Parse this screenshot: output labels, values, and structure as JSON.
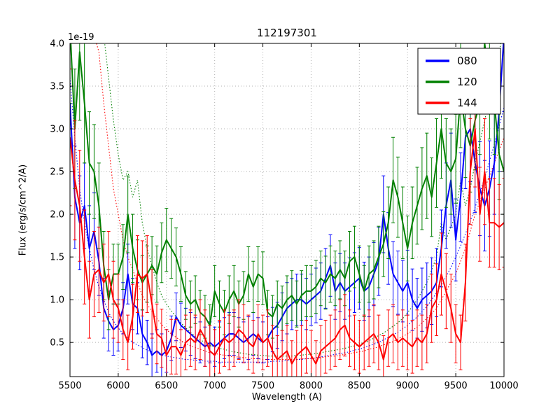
{
  "chart_data": {
    "type": "line",
    "title": "112197301",
    "xlabel": "Wavelength (A)",
    "ylabel": "Flux (erg/s/cm^2/A)",
    "y_offset_text": "1e-19",
    "xlim": [
      5500,
      10000
    ],
    "ylim": [
      0.1,
      4.0
    ],
    "xticks": [
      5500,
      6000,
      6500,
      7000,
      7500,
      8000,
      8500,
      9000,
      9500,
      10000
    ],
    "yticks": [
      0.5,
      1.0,
      1.5,
      2.0,
      2.5,
      3.0,
      3.5,
      4.0
    ],
    "grid": true,
    "legend_position": "upper right",
    "x_start": 5500,
    "x_step": 50,
    "n_points": 91,
    "series": [
      {
        "name": "080",
        "color": "#0000ff",
        "values": [
          3.3,
          2.2,
          1.9,
          2.1,
          1.6,
          1.8,
          1.45,
          0.9,
          0.75,
          0.65,
          0.7,
          0.9,
          1.3,
          0.95,
          0.9,
          0.6,
          0.5,
          0.35,
          0.4,
          0.35,
          0.4,
          0.55,
          0.8,
          0.7,
          0.65,
          0.6,
          0.55,
          0.5,
          0.45,
          0.5,
          0.45,
          0.5,
          0.55,
          0.6,
          0.6,
          0.55,
          0.5,
          0.55,
          0.6,
          0.55,
          0.5,
          0.55,
          0.65,
          0.7,
          0.8,
          0.9,
          0.95,
          1.0,
          1.0,
          0.95,
          1.0,
          1.05,
          1.1,
          1.25,
          1.4,
          1.1,
          1.2,
          1.1,
          1.15,
          1.2,
          1.25,
          1.1,
          1.15,
          1.3,
          1.45,
          2.0,
          1.6,
          1.3,
          1.2,
          1.1,
          1.2,
          1.0,
          0.9,
          1.0,
          1.05,
          1.1,
          1.2,
          1.6,
          2.1,
          2.4,
          1.7,
          2.2,
          2.9,
          3.0,
          2.6,
          2.3,
          2.1,
          2.3,
          2.6,
          3.2,
          4.1
        ],
        "errors": [
          0.8,
          0.6,
          0.55,
          0.5,
          0.5,
          0.45,
          0.4,
          0.35,
          0.35,
          0.3,
          0.3,
          0.3,
          0.35,
          0.3,
          0.3,
          0.28,
          0.26,
          0.25,
          0.25,
          0.25,
          0.25,
          0.26,
          0.28,
          0.26,
          0.25,
          0.25,
          0.24,
          0.24,
          0.23,
          0.24,
          0.23,
          0.24,
          0.24,
          0.25,
          0.25,
          0.24,
          0.24,
          0.25,
          0.25,
          0.24,
          0.24,
          0.25,
          0.26,
          0.27,
          0.28,
          0.3,
          0.3,
          0.3,
          0.3,
          0.3,
          0.3,
          0.32,
          0.33,
          0.35,
          0.36,
          0.33,
          0.34,
          0.33,
          0.34,
          0.35,
          0.36,
          0.34,
          0.35,
          0.37,
          0.4,
          0.45,
          0.42,
          0.38,
          0.37,
          0.36,
          0.38,
          0.36,
          0.35,
          0.37,
          0.38,
          0.39,
          0.4,
          0.45,
          0.5,
          0.55,
          0.48,
          0.52,
          0.6,
          0.62,
          0.58,
          0.55,
          0.53,
          0.56,
          0.6,
          0.7,
          0.9
        ]
      },
      {
        "name": "120",
        "color": "#008000",
        "values": [
          4.2,
          3.0,
          3.9,
          3.3,
          2.6,
          2.5,
          2.1,
          1.4,
          1.0,
          1.3,
          1.3,
          1.5,
          2.0,
          1.6,
          1.35,
          1.2,
          1.3,
          1.4,
          1.3,
          1.55,
          1.7,
          1.6,
          1.5,
          1.3,
          1.05,
          0.95,
          1.0,
          0.85,
          0.8,
          0.7,
          1.1,
          0.95,
          0.85,
          1.0,
          1.1,
          0.95,
          1.05,
          1.3,
          1.15,
          1.3,
          1.25,
          0.85,
          0.8,
          0.95,
          0.9,
          1.0,
          1.05,
          0.95,
          1.05,
          1.1,
          1.1,
          1.15,
          1.25,
          1.2,
          1.3,
          1.25,
          1.35,
          1.25,
          1.45,
          1.5,
          1.3,
          1.1,
          1.3,
          1.35,
          1.5,
          1.65,
          1.9,
          2.4,
          2.2,
          1.9,
          1.6,
          1.9,
          2.1,
          2.3,
          2.45,
          2.2,
          2.6,
          3.0,
          2.6,
          2.5,
          2.65,
          3.4,
          3.0,
          2.8,
          3.1,
          3.3,
          4.0,
          3.5,
          3.3,
          2.7,
          2.5
        ],
        "errors": [
          0.9,
          0.7,
          0.8,
          0.7,
          0.6,
          0.55,
          0.5,
          0.4,
          0.35,
          0.35,
          0.35,
          0.38,
          0.45,
          0.4,
          0.35,
          0.32,
          0.33,
          0.34,
          0.33,
          0.35,
          0.37,
          0.35,
          0.34,
          0.32,
          0.28,
          0.27,
          0.28,
          0.26,
          0.25,
          0.24,
          0.3,
          0.27,
          0.26,
          0.28,
          0.3,
          0.27,
          0.28,
          0.32,
          0.3,
          0.32,
          0.31,
          0.26,
          0.25,
          0.27,
          0.26,
          0.28,
          0.29,
          0.27,
          0.29,
          0.3,
          0.3,
          0.31,
          0.32,
          0.31,
          0.33,
          0.32,
          0.34,
          0.32,
          0.35,
          0.36,
          0.33,
          0.3,
          0.33,
          0.34,
          0.36,
          0.38,
          0.42,
          0.5,
          0.47,
          0.42,
          0.38,
          0.42,
          0.45,
          0.48,
          0.5,
          0.46,
          0.52,
          0.58,
          0.52,
          0.5,
          0.52,
          0.62,
          0.57,
          0.54,
          0.58,
          0.6,
          0.68,
          0.62,
          0.6,
          0.53,
          0.5
        ]
      },
      {
        "name": "144",
        "color": "#ff0000",
        "values": [
          2.9,
          2.4,
          2.1,
          1.5,
          1.0,
          1.3,
          1.35,
          1.2,
          1.3,
          1.0,
          0.9,
          0.65,
          0.5,
          0.8,
          1.3,
          1.25,
          1.3,
          0.95,
          0.6,
          0.55,
          0.35,
          0.45,
          0.45,
          0.35,
          0.5,
          0.55,
          0.5,
          0.65,
          0.55,
          0.4,
          0.35,
          0.45,
          0.55,
          0.5,
          0.55,
          0.65,
          0.6,
          0.5,
          0.45,
          0.6,
          0.5,
          0.55,
          0.4,
          0.3,
          0.35,
          0.4,
          0.25,
          0.35,
          0.4,
          0.45,
          0.35,
          0.25,
          0.4,
          0.45,
          0.5,
          0.55,
          0.65,
          0.7,
          0.55,
          0.5,
          0.45,
          0.5,
          0.55,
          0.6,
          0.5,
          0.3,
          0.55,
          0.6,
          0.5,
          0.55,
          0.5,
          0.45,
          0.55,
          0.5,
          0.6,
          0.9,
          1.0,
          1.3,
          1.1,
          0.9,
          0.6,
          0.5,
          1.2,
          2.5,
          3.0,
          2.0,
          2.5,
          1.9,
          1.9,
          1.85,
          1.9
        ],
        "errors": [
          0.8,
          0.7,
          0.65,
          0.55,
          0.45,
          0.5,
          0.5,
          0.45,
          0.5,
          0.45,
          0.4,
          0.35,
          0.32,
          0.38,
          0.45,
          0.44,
          0.45,
          0.4,
          0.35,
          0.34,
          0.3,
          0.32,
          0.32,
          0.3,
          0.32,
          0.33,
          0.32,
          0.35,
          0.33,
          0.3,
          0.3,
          0.31,
          0.33,
          0.32,
          0.33,
          0.35,
          0.34,
          0.32,
          0.31,
          0.34,
          0.32,
          0.33,
          0.3,
          0.28,
          0.29,
          0.3,
          0.27,
          0.29,
          0.3,
          0.31,
          0.29,
          0.27,
          0.3,
          0.31,
          0.32,
          0.33,
          0.35,
          0.36,
          0.33,
          0.32,
          0.31,
          0.32,
          0.33,
          0.34,
          0.32,
          0.28,
          0.33,
          0.34,
          0.32,
          0.33,
          0.32,
          0.31,
          0.33,
          0.32,
          0.34,
          0.4,
          0.42,
          0.48,
          0.44,
          0.4,
          0.34,
          0.32,
          0.45,
          0.62,
          0.68,
          0.55,
          0.62,
          0.52,
          0.52,
          0.5,
          0.52
        ]
      }
    ],
    "noise_series": [
      {
        "name": "080-noise",
        "color": "#0000ff",
        "style": "dotted",
        "values": [
          3.6,
          2.9,
          2.3,
          1.9,
          1.6,
          1.35,
          1.15,
          1.0,
          0.85,
          0.75,
          0.67,
          0.6,
          0.55,
          0.5,
          0.47,
          0.44,
          0.41,
          0.39,
          0.37,
          0.35,
          0.34,
          0.33,
          0.32,
          0.31,
          0.3,
          0.3,
          0.29,
          0.29,
          0.28,
          0.28,
          0.28,
          0.27,
          0.27,
          0.27,
          0.27,
          0.27,
          0.27,
          0.27,
          0.27,
          0.27,
          0.27,
          0.27,
          0.28,
          0.28,
          0.28,
          0.29,
          0.29,
          0.3,
          0.3,
          0.31,
          0.31,
          0.32,
          0.33,
          0.34,
          0.35,
          0.36,
          0.37,
          0.38,
          0.39,
          0.41,
          0.42,
          0.44,
          0.46,
          0.48,
          0.5,
          0.53,
          0.56,
          0.59,
          0.62,
          0.66,
          0.7,
          0.75,
          0.8,
          0.86,
          0.92,
          1.0,
          1.08,
          1.17,
          1.27,
          1.38,
          1.5,
          1.63,
          1.77,
          1.92,
          2.08,
          2.25,
          2.43,
          2.62,
          2.82,
          3.03,
          3.25
        ]
      },
      {
        "name": "120-noise",
        "color": "#008000",
        "style": "dotted",
        "values": [
          5.0,
          5.0,
          5.0,
          4.9,
          4.8,
          4.6,
          4.4,
          4.1,
          3.6,
          3.1,
          2.7,
          2.4,
          2.5,
          2.2,
          2.4,
          1.9,
          1.6,
          1.4,
          1.2,
          1.05,
          0.95,
          0.87,
          0.8,
          0.73,
          0.67,
          0.62,
          0.57,
          0.53,
          0.5,
          0.47,
          0.45,
          0.43,
          0.42,
          0.4,
          0.39,
          0.38,
          0.37,
          0.36,
          0.36,
          0.35,
          0.35,
          0.34,
          0.34,
          0.34,
          0.34,
          0.34,
          0.34,
          0.35,
          0.35,
          0.36,
          0.36,
          0.37,
          0.38,
          0.39,
          0.4,
          0.41,
          0.42,
          0.43,
          0.45,
          0.46,
          0.48,
          0.5,
          0.52,
          0.55,
          0.58,
          0.61,
          0.65,
          0.69,
          0.73,
          0.78,
          0.85,
          0.92,
          1.0,
          1.1,
          1.2,
          1.35,
          1.5,
          1.9,
          1.7,
          1.85,
          2.0,
          2.4,
          2.1,
          2.3,
          2.6,
          2.85,
          3.1,
          3.35,
          3.6,
          3.9,
          4.2
        ]
      },
      {
        "name": "144-noise",
        "color": "#ff0000",
        "style": "dotted",
        "values": [
          4.7,
          4.6,
          4.5,
          4.4,
          4.2,
          4.1,
          3.9,
          3.3,
          2.8,
          2.3,
          2.0,
          1.7,
          1.5,
          1.35,
          1.2,
          1.05,
          0.95,
          0.86,
          0.78,
          0.71,
          0.65,
          0.6,
          0.56,
          0.52,
          0.49,
          0.46,
          0.44,
          0.42,
          0.4,
          0.38,
          0.37,
          0.36,
          0.35,
          0.34,
          0.33,
          0.33,
          0.32,
          0.32,
          0.31,
          0.31,
          0.3,
          0.3,
          0.3,
          0.3,
          0.3,
          0.3,
          0.3,
          0.3,
          0.31,
          0.31,
          0.31,
          0.32,
          0.32,
          0.33,
          0.34,
          0.34,
          0.35,
          0.36,
          0.37,
          0.38,
          0.39,
          0.4,
          0.42,
          0.43,
          0.45,
          0.47,
          0.49,
          0.51,
          0.54,
          0.57,
          0.6,
          0.64,
          0.68,
          0.73,
          0.78,
          0.84,
          0.9,
          1.0,
          1.1,
          1.2,
          1.3,
          1.45,
          1.6,
          1.8,
          2.0,
          2.15,
          2.3,
          2.45,
          2.6,
          2.75,
          2.9
        ]
      }
    ],
    "colors": {
      "frame": "#000000",
      "grid": "#b0b0b0",
      "background": "#ffffff"
    }
  }
}
